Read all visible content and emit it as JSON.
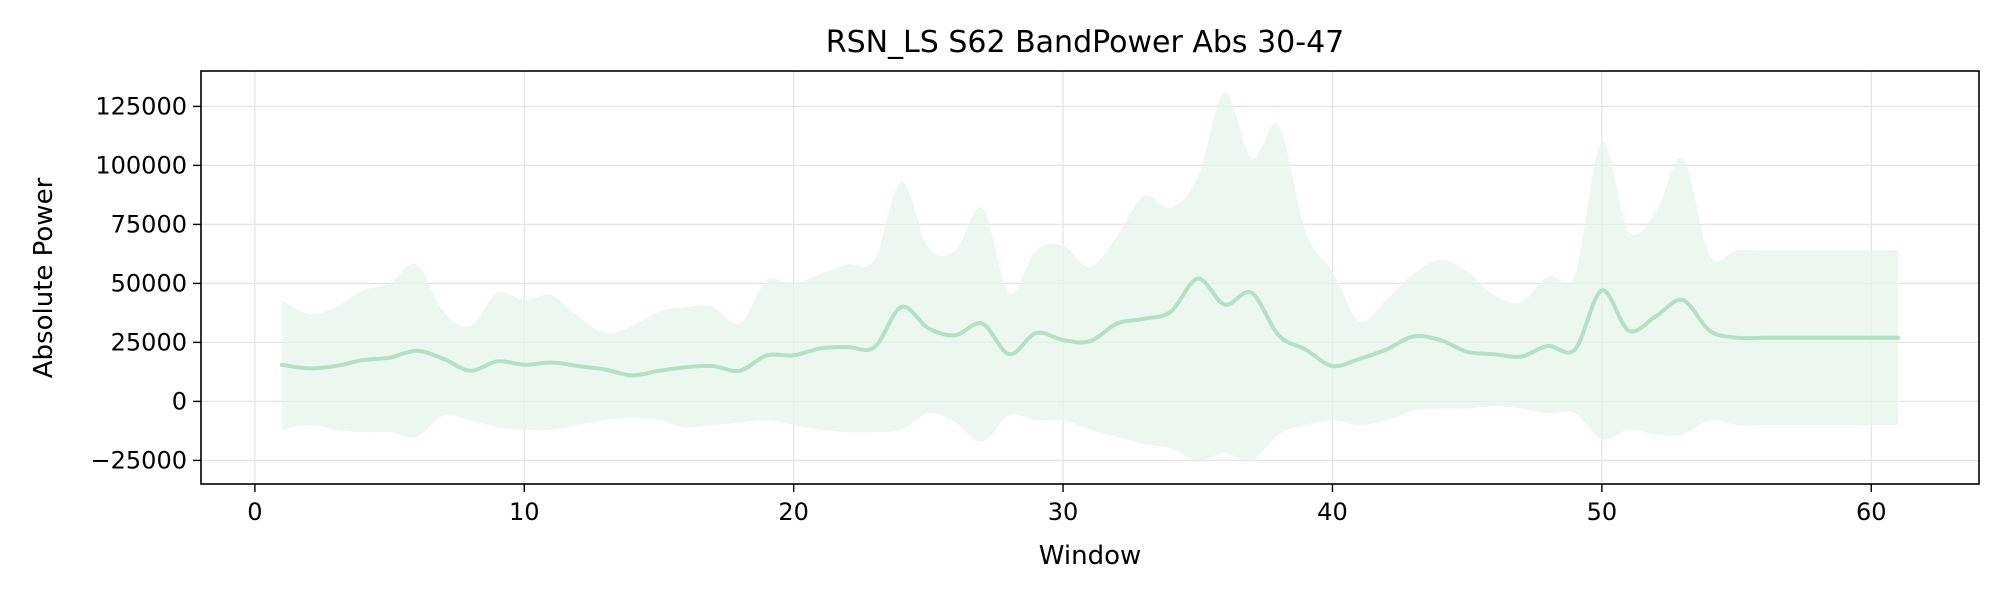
{
  "chart_data": {
    "type": "line",
    "title": "RSN_LS S62 BandPower Abs 30-47",
    "xlabel": "Window",
    "ylabel": "Absolute Power",
    "xlim": [
      -2,
      64
    ],
    "ylim": [
      -35000,
      140000
    ],
    "grid": true,
    "legend": "none",
    "x_ticks": [
      0,
      10,
      20,
      30,
      40,
      50,
      60
    ],
    "x_tick_labels": [
      "0",
      "10",
      "20",
      "30",
      "40",
      "50",
      "60"
    ],
    "y_ticks": [
      -25000,
      0,
      25000,
      50000,
      75000,
      100000,
      125000
    ],
    "y_tick_labels": [
      "−25000",
      "0",
      "25000",
      "50000",
      "75000",
      "100000",
      "125000"
    ],
    "colors": {
      "line": "#b4e0c4",
      "band": "#e6f5ea",
      "grid": "#e4e4e4",
      "axis": "#000000"
    },
    "series": [
      {
        "x": [
          1,
          2,
          3,
          4,
          5,
          6,
          7,
          8,
          9,
          10,
          11,
          12,
          13,
          14,
          15,
          16,
          17,
          18,
          19,
          20,
          21,
          22,
          23,
          24,
          25,
          26,
          27,
          28,
          29,
          30,
          31,
          32,
          33,
          34,
          35,
          36,
          37,
          38,
          39,
          40,
          41,
          42,
          43,
          44,
          45,
          46,
          47,
          48,
          49,
          50,
          51,
          52,
          53,
          54,
          55,
          56,
          57,
          58,
          59,
          60,
          61
        ],
        "mean": [
          15500,
          14000,
          15000,
          17500,
          18500,
          21500,
          18000,
          13000,
          17000,
          15500,
          16500,
          15000,
          13500,
          11000,
          13000,
          14500,
          15000,
          13000,
          19500,
          19500,
          22500,
          23000,
          23000,
          40000,
          31000,
          28000,
          33000,
          20000,
          29000,
          26000,
          25500,
          33000,
          35000,
          38000,
          52000,
          41000,
          46000,
          28000,
          22000,
          15000,
          18000,
          22000,
          27500,
          26000,
          21000,
          20000,
          19000,
          23500,
          22000,
          47000,
          30000,
          36000,
          43000,
          30000,
          27000,
          27000,
          27000,
          27000,
          27000,
          27000,
          27000
        ],
        "upper": [
          43000,
          37000,
          40000,
          47000,
          50000,
          58000,
          38000,
          32000,
          46000,
          43000,
          45000,
          36000,
          29000,
          32000,
          38000,
          40000,
          40000,
          33000,
          51000,
          50000,
          54000,
          58000,
          60000,
          93000,
          65000,
          64000,
          82000,
          46000,
          64000,
          66000,
          57000,
          70000,
          87000,
          82000,
          95000,
          131000,
          103000,
          117000,
          72000,
          55000,
          34000,
          43000,
          54000,
          60000,
          55000,
          45000,
          42000,
          53000,
          54000,
          110000,
          72000,
          80000,
          103000,
          62000,
          64000,
          64000,
          64000,
          64000,
          64000,
          64000,
          64000
        ],
        "lower": [
          -12000,
          -10000,
          -12000,
          -13000,
          -13000,
          -15000,
          -6000,
          -8000,
          -11000,
          -12000,
          -12000,
          -10000,
          -8000,
          -7000,
          -8000,
          -11000,
          -10000,
          -9000,
          -8000,
          -10000,
          -12000,
          -13000,
          -13000,
          -12000,
          -5000,
          -9000,
          -17000,
          -6000,
          -8000,
          -8000,
          -12000,
          -15000,
          -18000,
          -20000,
          -25000,
          -22000,
          -25000,
          -14000,
          -10000,
          -8000,
          -10000,
          -8000,
          -4000,
          -3000,
          -3000,
          -2000,
          -3000,
          -5000,
          -5000,
          -16000,
          -12000,
          -14000,
          -14000,
          -8000,
          -10000,
          -10000,
          -10000,
          -10000,
          -10000,
          -10000,
          -10000
        ]
      }
    ]
  }
}
